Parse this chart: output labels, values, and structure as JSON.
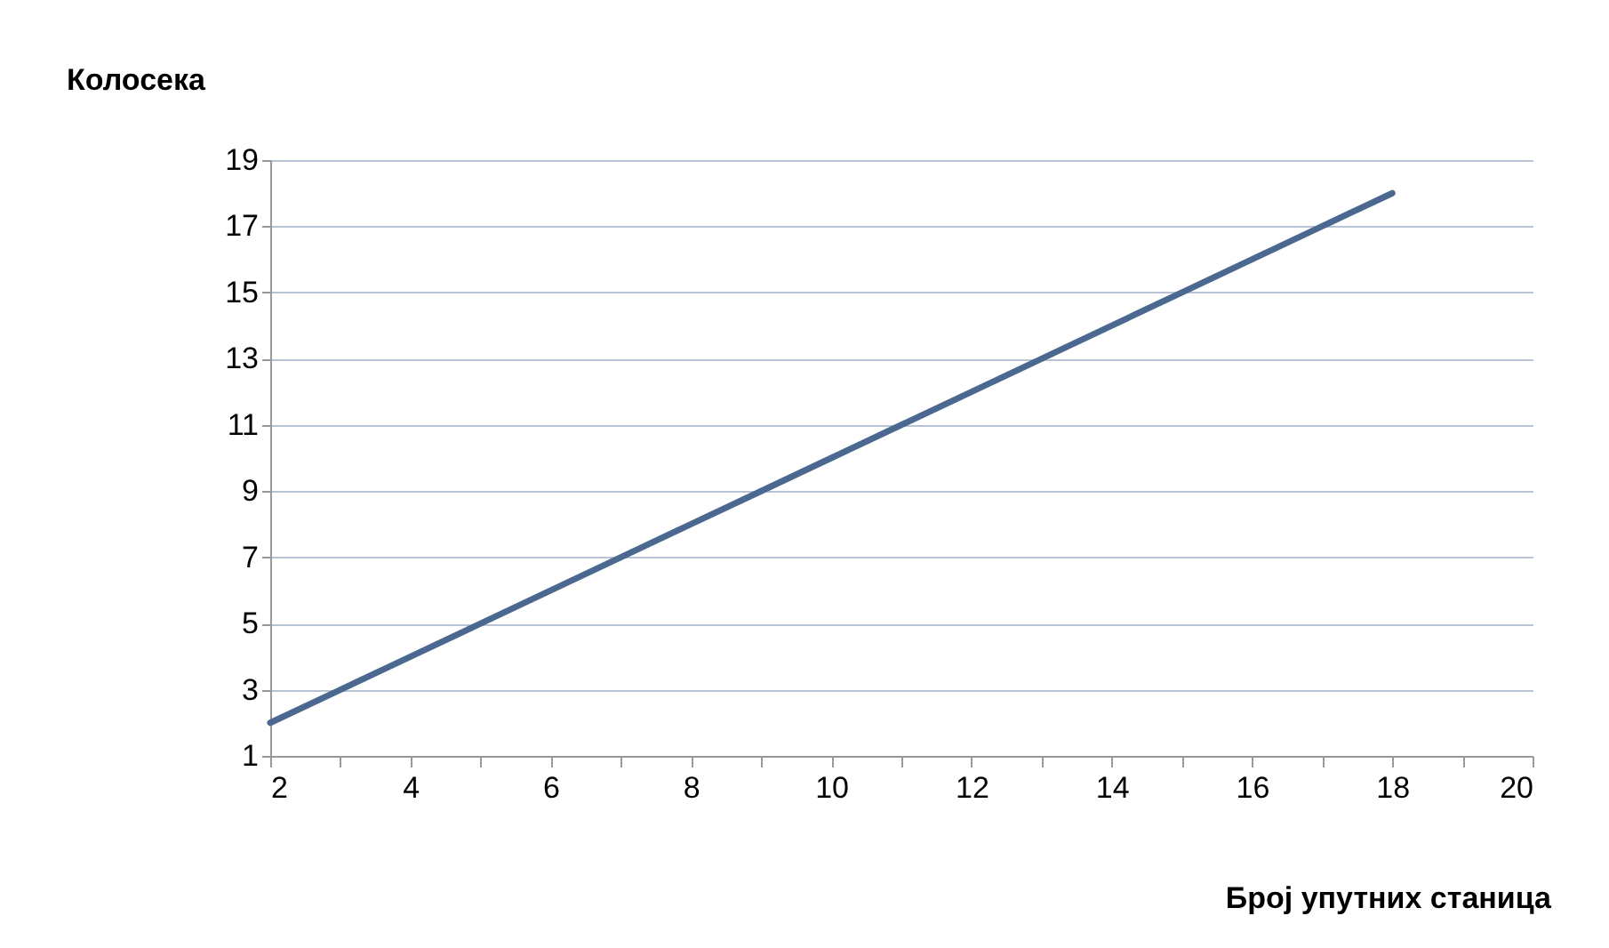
{
  "chart_data": {
    "type": "line",
    "xlabel": "Број упутних станица",
    "ylabel": "Колосека",
    "x": [
      2,
      3,
      4,
      5,
      6,
      7,
      8,
      9,
      10,
      11,
      12,
      13,
      14,
      15,
      16,
      17,
      18
    ],
    "series": [
      {
        "color": "#4a6890",
        "values": [
          2,
          3,
          4,
          5,
          6,
          7,
          8,
          9,
          10,
          11,
          12,
          13,
          14,
          15,
          16,
          17,
          18
        ]
      }
    ],
    "xlim": [
      2,
      20
    ],
    "ylim": [
      1,
      19
    ],
    "xticks": [
      2,
      {
        "value": 3,
        "label": null
      },
      4,
      {
        "value": 5,
        "label": null
      },
      6,
      {
        "value": 7,
        "label": null
      },
      8,
      {
        "value": 9,
        "label": null
      },
      10,
      {
        "value": 11,
        "label": null
      },
      12,
      {
        "value": 13,
        "label": null
      },
      14,
      {
        "value": 15,
        "label": null
      },
      16,
      {
        "value": 17,
        "label": null
      },
      18,
      {
        "value": 19,
        "label": null
      },
      20
    ],
    "yticks": [
      1,
      3,
      5,
      7,
      9,
      11,
      13,
      15,
      17,
      19
    ],
    "grid": "y",
    "marker": "none",
    "line_style": "solid"
  }
}
